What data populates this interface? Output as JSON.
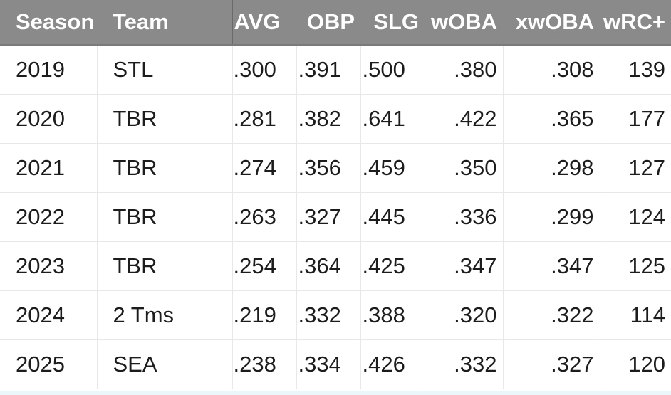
{
  "table": {
    "headers": [
      "Season",
      "Team",
      "AVG",
      "OBP",
      "SLG",
      "wOBA",
      "xwOBA",
      "wRC+"
    ],
    "rows": [
      [
        "2019",
        "STL",
        ".300",
        ".391",
        ".500",
        ".380",
        ".308",
        "139"
      ],
      [
        "2020",
        "TBR",
        ".281",
        ".382",
        ".641",
        ".422",
        ".365",
        "177"
      ],
      [
        "2021",
        "TBR",
        ".274",
        ".356",
        ".459",
        ".350",
        ".298",
        "127"
      ],
      [
        "2022",
        "TBR",
        ".263",
        ".327",
        ".445",
        ".336",
        ".299",
        "124"
      ],
      [
        "2023",
        "TBR",
        ".254",
        ".364",
        ".425",
        ".347",
        ".347",
        "125"
      ],
      [
        "2024",
        "2 Tms",
        ".219",
        ".332",
        ".388",
        ".320",
        ".322",
        "114"
      ],
      [
        "2025",
        "SEA",
        ".238",
        ".334",
        ".426",
        ".332",
        ".327",
        "120"
      ]
    ]
  },
  "colors": {
    "header_bg": "#8a8a8a",
    "header_text": "#ffffff",
    "cell_text": "#1c1c1c",
    "grid": "#e8e8e8"
  }
}
